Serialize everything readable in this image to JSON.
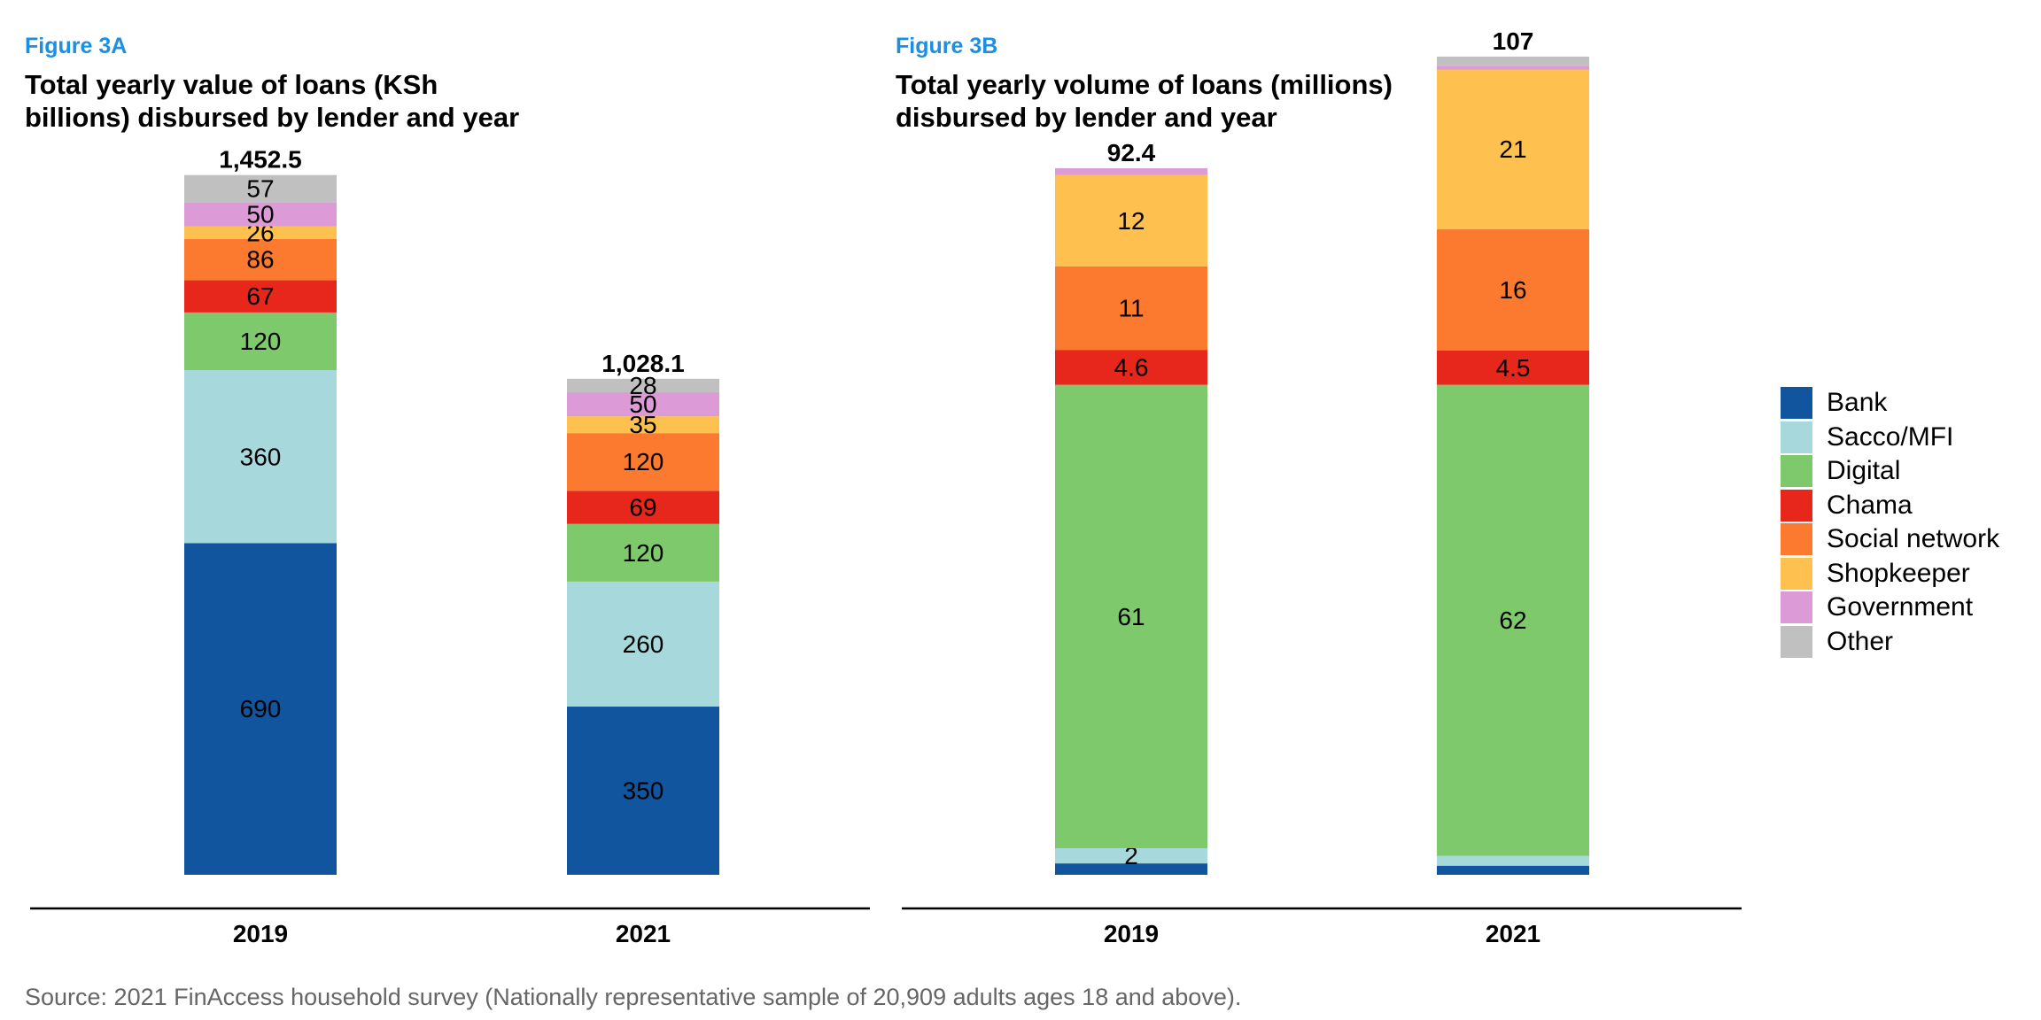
{
  "colors": {
    "Bank": "#11559e",
    "Sacco/MFI": "#a7d8dc",
    "Digital": "#7ec96c",
    "Chama": "#e8271c",
    "Social network": "#fb7a30",
    "Shopkeeper": "#fec14f",
    "Government": "#dc9ad6",
    "Other": "#c0c0c0"
  },
  "legend": [
    "Bank",
    "Sacco/MFI",
    "Digital",
    "Chama",
    "Social network",
    "Shopkeeper",
    "Government",
    "Other"
  ],
  "chart_data": [
    {
      "id": "3A",
      "type": "bar",
      "stacked": true,
      "figure_label": "Figure 3A",
      "title_line1": "Total yearly value of loans (KSh",
      "title_line2": "billions) disbursed by lender and year",
      "categories": [
        "2019",
        "2021"
      ],
      "totals": [
        "1,452.5",
        "1,028.1"
      ],
      "series": [
        {
          "name": "Bank",
          "values": [
            690,
            350
          ],
          "labels": [
            "690",
            "350"
          ]
        },
        {
          "name": "Sacco/MFI",
          "values": [
            360,
            260
          ],
          "labels": [
            "360",
            "260"
          ]
        },
        {
          "name": "Digital",
          "values": [
            120,
            120
          ],
          "labels": [
            "120",
            "120"
          ]
        },
        {
          "name": "Chama",
          "values": [
            67,
            69
          ],
          "labels": [
            "67",
            "69"
          ]
        },
        {
          "name": "Social network",
          "values": [
            86,
            120
          ],
          "labels": [
            "86",
            "120"
          ]
        },
        {
          "name": "Shopkeeper",
          "values": [
            26,
            35
          ],
          "labels": [
            "26",
            "35"
          ]
        },
        {
          "name": "Government",
          "values": [
            50,
            50
          ],
          "labels": [
            "50",
            "50"
          ]
        },
        {
          "name": "Other",
          "values": [
            57,
            28
          ],
          "labels": [
            "57",
            "28"
          ]
        }
      ]
    },
    {
      "id": "3B",
      "type": "bar",
      "stacked": true,
      "figure_label": "Figure 3B",
      "title_line1": "Total yearly volume of loans (millions)",
      "title_line2": "disbursed by lender and year",
      "categories": [
        "2019",
        "2021"
      ],
      "totals": [
        "92.4",
        "107"
      ],
      "series": [
        {
          "name": "Bank",
          "values": [
            1.5,
            1.2
          ],
          "labels": [
            "",
            ""
          ]
        },
        {
          "name": "Sacco/MFI",
          "values": [
            2,
            1.3
          ],
          "labels": [
            "2",
            ""
          ]
        },
        {
          "name": "Digital",
          "values": [
            61,
            62
          ],
          "labels": [
            "61",
            "62"
          ]
        },
        {
          "name": "Chama",
          "values": [
            4.6,
            4.5
          ],
          "labels": [
            "4.6",
            "4.5"
          ]
        },
        {
          "name": "Social network",
          "values": [
            11,
            16
          ],
          "labels": [
            "11",
            "16"
          ]
        },
        {
          "name": "Shopkeeper",
          "values": [
            12,
            21
          ],
          "labels": [
            "12",
            "21"
          ]
        },
        {
          "name": "Government",
          "values": [
            0.9,
            0.5
          ],
          "labels": [
            "",
            ""
          ]
        },
        {
          "name": "Other",
          "values": [
            0,
            1.2
          ],
          "labels": [
            "",
            ""
          ]
        }
      ]
    }
  ],
  "source": "Source: 2021 FinAccess household survey (Nationally representative sample of 20,909  adults ages 18 and above)."
}
